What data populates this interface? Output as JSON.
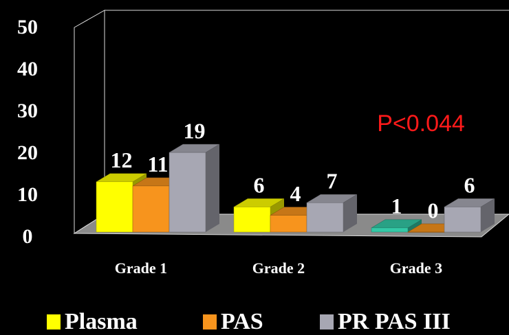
{
  "chart_data": {
    "type": "bar",
    "categories": [
      "Grade 1",
      "Grade 2",
      "Grade 3"
    ],
    "series": [
      {
        "name": "Plasma",
        "color": "#ffff00",
        "colors": [
          "#ffff00",
          "#ffff00",
          "#33c9a6"
        ],
        "values": [
          12,
          6,
          1
        ]
      },
      {
        "name": "PAS",
        "color": "#f7941d",
        "values": [
          11,
          4,
          0
        ]
      },
      {
        "name": "PR PAS III",
        "color": "#a7a7b3",
        "values": [
          19,
          7,
          6
        ]
      }
    ],
    "ylim": [
      0,
      50
    ],
    "yticks": [
      0,
      10,
      20,
      30,
      40,
      50
    ],
    "annotation": "P<0.044"
  }
}
